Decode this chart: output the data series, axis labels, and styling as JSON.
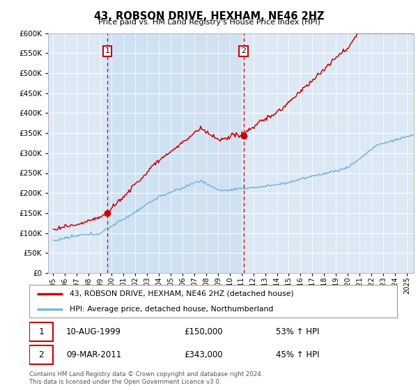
{
  "title": "43, ROBSON DRIVE, HEXHAM, NE46 2HZ",
  "subtitle": "Price paid vs. HM Land Registry's House Price Index (HPI)",
  "legend_line1": "43, ROBSON DRIVE, HEXHAM, NE46 2HZ (detached house)",
  "legend_line2": "HPI: Average price, detached house, Northumberland",
  "transaction1_date": "10-AUG-1999",
  "transaction1_price": "£150,000",
  "transaction1_hpi": "53% ↑ HPI",
  "transaction2_date": "09-MAR-2011",
  "transaction2_price": "£343,000",
  "transaction2_hpi": "45% ↑ HPI",
  "footer": "Contains HM Land Registry data © Crown copyright and database right 2024.\nThis data is licensed under the Open Government Licence v3.0.",
  "hpi_color": "#7ab4d8",
  "price_color": "#cc0000",
  "vline_color": "#cc0000",
  "shade_color": "#c8ddf0",
  "ylim": [
    0,
    600000
  ],
  "yticks": [
    0,
    50000,
    100000,
    150000,
    200000,
    250000,
    300000,
    350000,
    400000,
    450000,
    500000,
    550000,
    600000
  ],
  "background_color": "#dce9f5",
  "t1_year": 1999.625,
  "t2_year": 2011.167
}
